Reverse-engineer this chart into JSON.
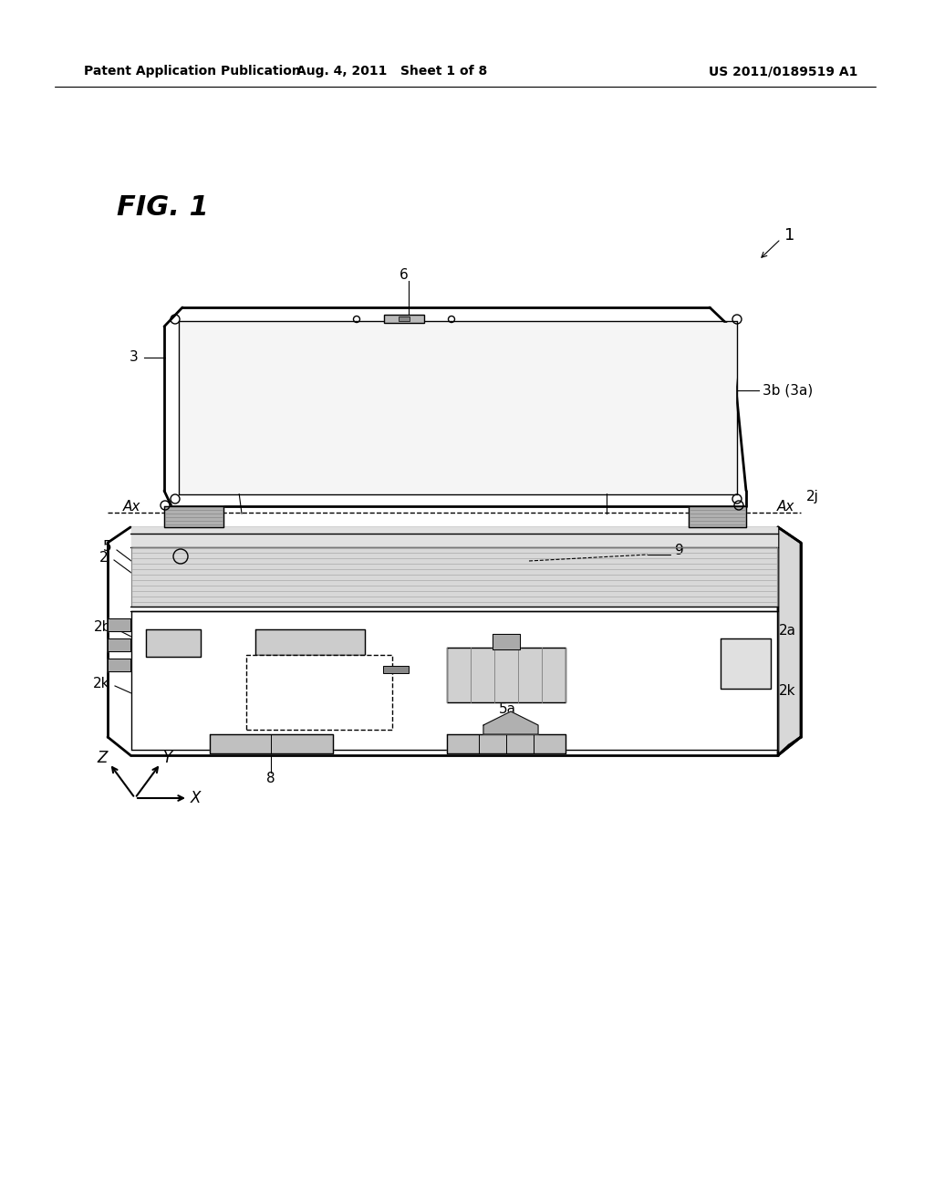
{
  "bg_color": "#ffffff",
  "header_left": "Patent Application Publication",
  "header_mid": "Aug. 4, 2011   Sheet 1 of 8",
  "header_right": "US 2011/0189519 A1",
  "fig_label": "FIG. 1"
}
